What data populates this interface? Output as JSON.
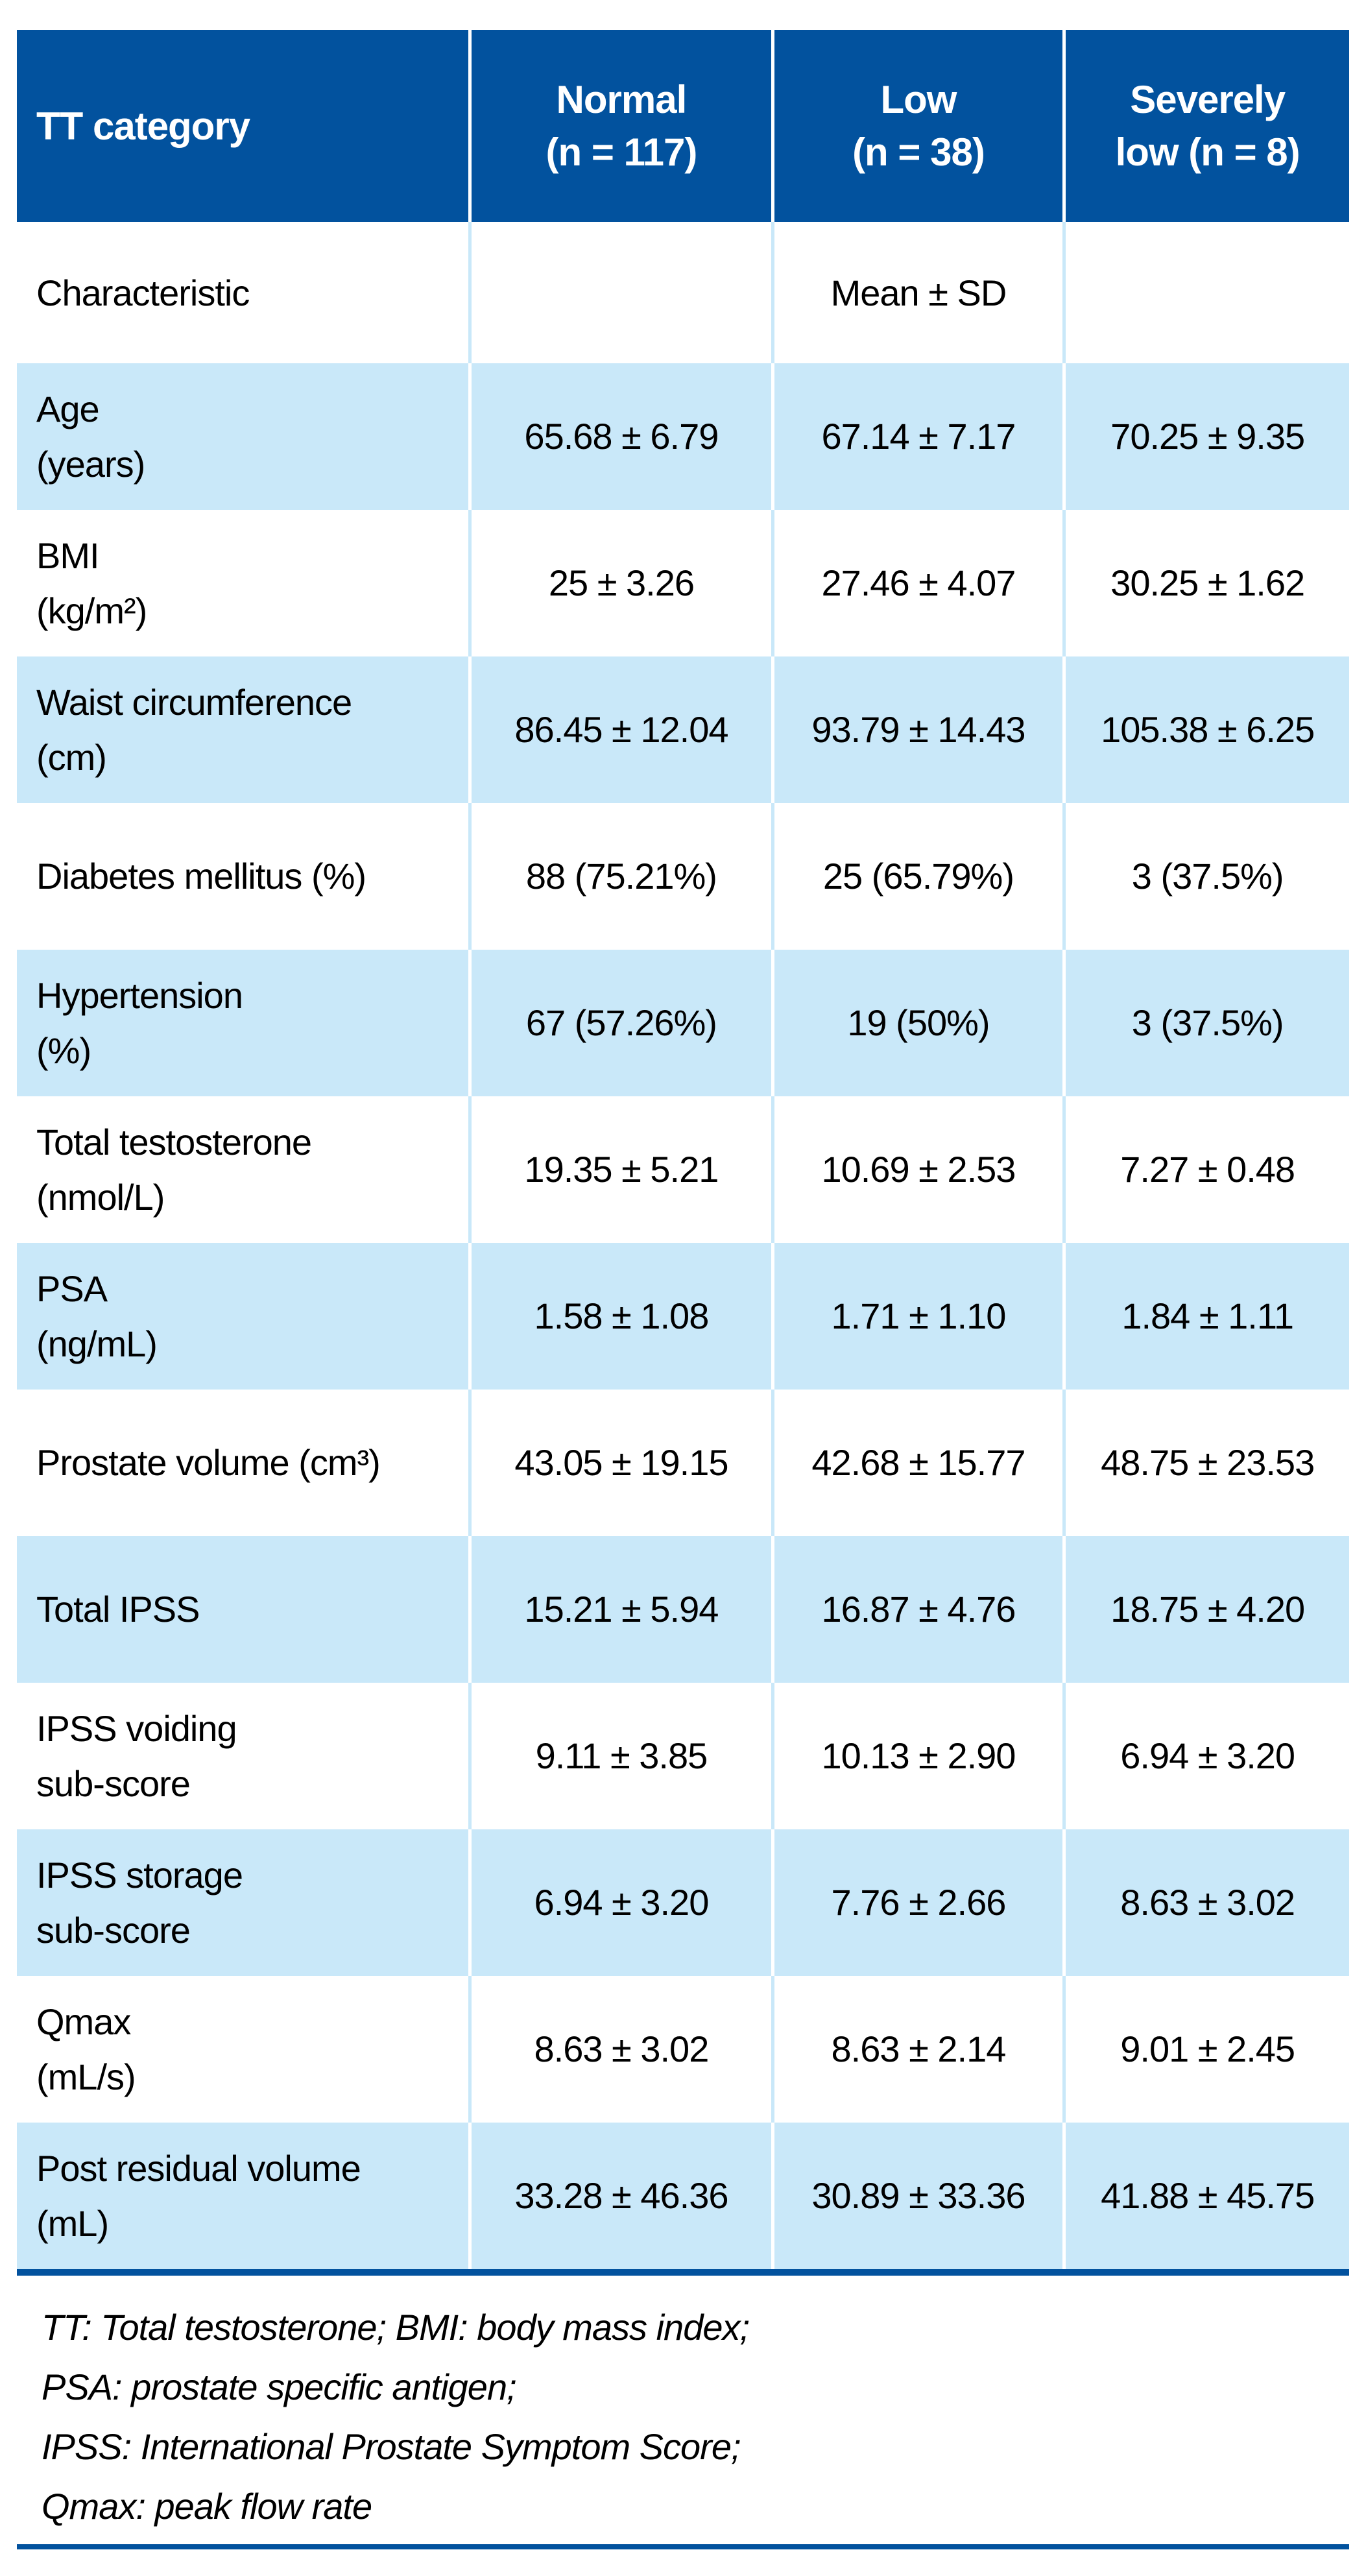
{
  "table": {
    "colors": {
      "header_blue": "#02529e",
      "row_tint_blue": "#c9e8f9",
      "divider_white": "#ffffff",
      "rule_blue": "#02529e",
      "text_black": "#000000",
      "header_text_white": "#ffffff"
    },
    "header": {
      "col1": "TT category",
      "col2": "Normal\n(n = 117)",
      "col3": "Low\n(n = 38)",
      "col4": "Severely\nlow (n = 8)"
    },
    "subheader": {
      "label": "Characteristic",
      "stat_label": "Mean ± SD"
    },
    "rows": [
      {
        "label": "Age\n(years)",
        "values": [
          "65.68 ± 6.79",
          "67.14 ± 7.17",
          "70.25 ± 9.35"
        ]
      },
      {
        "label": "BMI\n(kg/m²)",
        "values": [
          "25 ± 3.26",
          "27.46 ± 4.07",
          "30.25 ± 1.62"
        ]
      },
      {
        "label": "Waist circumference\n(cm)",
        "values": [
          "86.45 ± 12.04",
          "93.79 ± 14.43",
          "105.38 ± 6.25"
        ]
      },
      {
        "label": "Diabetes mellitus (%)",
        "values": [
          "88 (75.21%)",
          "25 (65.79%)",
          "3 (37.5%)"
        ]
      },
      {
        "label": "Hypertension\n(%)",
        "values": [
          "67 (57.26%)",
          "19 (50%)",
          "3 (37.5%)"
        ]
      },
      {
        "label": "Total testosterone\n(nmol/L)",
        "values": [
          "19.35 ± 5.21",
          "10.69 ± 2.53",
          "7.27 ± 0.48"
        ]
      },
      {
        "label": "PSA\n(ng/mL)",
        "values": [
          "1.58 ± 1.08",
          "1.71 ± 1.10",
          "1.84 ± 1.11"
        ]
      },
      {
        "label": "Prostate volume (cm³)",
        "values": [
          "43.05 ± 19.15",
          "42.68 ± 15.77",
          "48.75 ± 23.53"
        ]
      },
      {
        "label": "Total IPSS",
        "values": [
          "15.21 ± 5.94",
          "16.87 ± 4.76",
          "18.75 ± 4.20"
        ]
      },
      {
        "label": "IPSS voiding\nsub-score",
        "values": [
          "9.11 ± 3.85",
          "10.13 ± 2.90",
          "6.94 ± 3.20"
        ]
      },
      {
        "label": "IPSS storage\nsub-score",
        "values": [
          "6.94 ± 3.20",
          "7.76 ± 2.66",
          "8.63 ± 3.02"
        ]
      },
      {
        "label": "Qmax\n(mL/s)",
        "values": [
          "8.63 ± 3.02",
          "8.63 ± 2.14",
          "9.01 ± 2.45"
        ]
      },
      {
        "label": "Post residual volume\n(mL)",
        "values": [
          "33.28 ± 46.36",
          "30.89 ± 33.36",
          "41.88 ± 45.75"
        ]
      }
    ],
    "footnotes": [
      "TT: Total testosterone; BMI: body mass index;",
      "PSA: prostate specific antigen;",
      "IPSS: International Prostate Symptom Score;",
      "Qmax: peak flow rate"
    ]
  }
}
